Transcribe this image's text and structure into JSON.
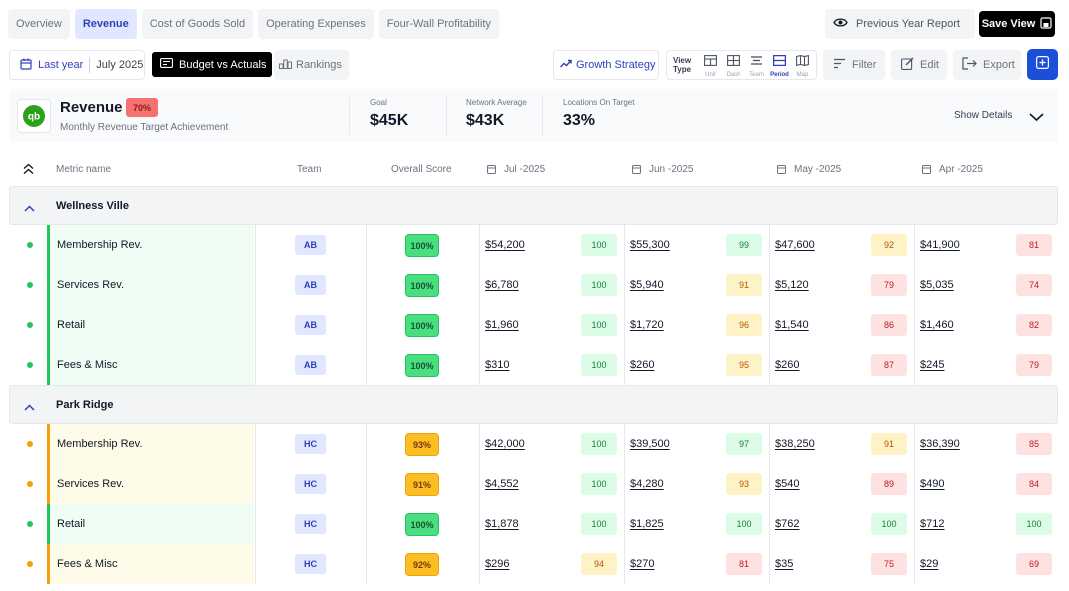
{
  "tabs": [
    {
      "label": "Overview",
      "active": false
    },
    {
      "label": "Revenue",
      "active": true
    },
    {
      "label": "Cost of Goods Sold",
      "active": false
    },
    {
      "label": "Operating Expenses",
      "active": false
    },
    {
      "label": "Four-Wall Profitability",
      "active": false
    }
  ],
  "header": {
    "previous_year_label": "Previous Year Report",
    "save_view_label": "Save View"
  },
  "toolbar": {
    "date_label": "Last year",
    "date_value": "July 2025",
    "budget_vs_actuals_label": "Budget vs Actuals",
    "rankings_label": "Rankings",
    "growth_strategy_label": "Growth Strategy",
    "view_type_label": "View Type",
    "view_options": [
      {
        "caption": "Unit",
        "icon": "unit-icon",
        "active": false
      },
      {
        "caption": "Dash",
        "icon": "dash-icon",
        "active": false
      },
      {
        "caption": "Team",
        "icon": "team-icon",
        "active": false
      },
      {
        "caption": "Period",
        "icon": "period-icon",
        "active": true
      },
      {
        "caption": "Map",
        "icon": "map-icon",
        "active": false
      }
    ],
    "filter_label": "Filter",
    "edit_label": "Edit",
    "export_label": "Export"
  },
  "summary": {
    "logo_text": "qb",
    "title": "Revenue",
    "badge": "70%",
    "subtitle": "Monthly Revenue Target Achievement",
    "kpis": [
      {
        "label": "Goal",
        "value": "$45K"
      },
      {
        "label": "Network Average",
        "value": "$43K"
      },
      {
        "label": "Locations On Target",
        "value": "33%"
      }
    ],
    "show_details_label": "Show Details"
  },
  "table": {
    "columns": {
      "metric": "Metric name",
      "team": "Team",
      "overall": "Overall Score",
      "months": [
        "Jul -2025",
        "Jun -2025",
        "May -2025",
        "Apr -2025"
      ]
    },
    "groups": [
      {
        "name": "Wellness Ville",
        "rows": [
          {
            "metric": "Membership Rev.",
            "team": "AB",
            "overall": "100%",
            "status": "green",
            "cells": [
              {
                "amount": "$54,200",
                "score": "100"
              },
              {
                "amount": "$55,300",
                "score": "99"
              },
              {
                "amount": "$47,600",
                "score": "92"
              },
              {
                "amount": "$41,900",
                "score": "81"
              }
            ]
          },
          {
            "metric": "Services Rev.",
            "team": "AB",
            "overall": "100%",
            "status": "green",
            "cells": [
              {
                "amount": "$6,780",
                "score": "100"
              },
              {
                "amount": "$5,940",
                "score": "91"
              },
              {
                "amount": "$5,120",
                "score": "79"
              },
              {
                "amount": "$5,035",
                "score": "74"
              }
            ]
          },
          {
            "metric": "Retail",
            "team": "AB",
            "overall": "100%",
            "status": "green",
            "cells": [
              {
                "amount": "$1,960",
                "score": "100"
              },
              {
                "amount": "$1,720",
                "score": "96"
              },
              {
                "amount": "$1,540",
                "score": "86"
              },
              {
                "amount": "$1,460",
                "score": "82"
              }
            ]
          },
          {
            "metric": "Fees & Misc",
            "team": "AB",
            "overall": "100%",
            "status": "green",
            "cells": [
              {
                "amount": "$310",
                "score": "100"
              },
              {
                "amount": "$260",
                "score": "95"
              },
              {
                "amount": "$260",
                "score": "87"
              },
              {
                "amount": "$245",
                "score": "79"
              }
            ]
          }
        ]
      },
      {
        "name": "Park Ridge",
        "rows": [
          {
            "metric": "Membership Rev.",
            "team": "HC",
            "overall": "93%",
            "status": "yellow",
            "cells": [
              {
                "amount": "$42,000",
                "score": "100"
              },
              {
                "amount": "$39,500",
                "score": "97"
              },
              {
                "amount": "$38,250",
                "score": "91"
              },
              {
                "amount": "$36,390",
                "score": "85"
              }
            ]
          },
          {
            "metric": "Services Rev.",
            "team": "HC",
            "overall": "91%",
            "status": "yellow",
            "cells": [
              {
                "amount": "$4,552",
                "score": "100"
              },
              {
                "amount": "$4,280",
                "score": "93"
              },
              {
                "amount": "$540",
                "score": "89"
              },
              {
                "amount": "$490",
                "score": "84"
              }
            ]
          },
          {
            "metric": "Retail",
            "team": "HC",
            "overall": "100%",
            "status": "green",
            "cells": [
              {
                "amount": "$1,878",
                "score": "100"
              },
              {
                "amount": "$1,825",
                "score": "100"
              },
              {
                "amount": "$762",
                "score": "100"
              },
              {
                "amount": "$712",
                "score": "100"
              }
            ]
          },
          {
            "metric": "Fees & Misc",
            "team": "HC",
            "overall": "92%",
            "status": "yellow",
            "cells": [
              {
                "amount": "$296",
                "score": "94"
              },
              {
                "amount": "$270",
                "score": "81"
              },
              {
                "amount": "$35",
                "score": "75"
              },
              {
                "amount": "$29",
                "score": "69"
              }
            ]
          }
        ]
      }
    ]
  },
  "colors": {
    "accent": "#2f3fb8",
    "primary_button": "#1d4ed8",
    "score_green_bg": "#dcfce7",
    "score_green_text": "#15803d",
    "score_yellow_bg": "#fef3c7",
    "score_yellow_text": "#b45309",
    "score_red_bg": "#fee2e2",
    "score_red_text": "#b91c1c",
    "overall_green": "#4ade80",
    "overall_yellow": "#fbbf24",
    "dot_green": "#22c55e",
    "dot_yellow": "#f59e0b",
    "row_green_bg": "#f0fdf4",
    "row_yellow_bg": "#fefce8"
  }
}
